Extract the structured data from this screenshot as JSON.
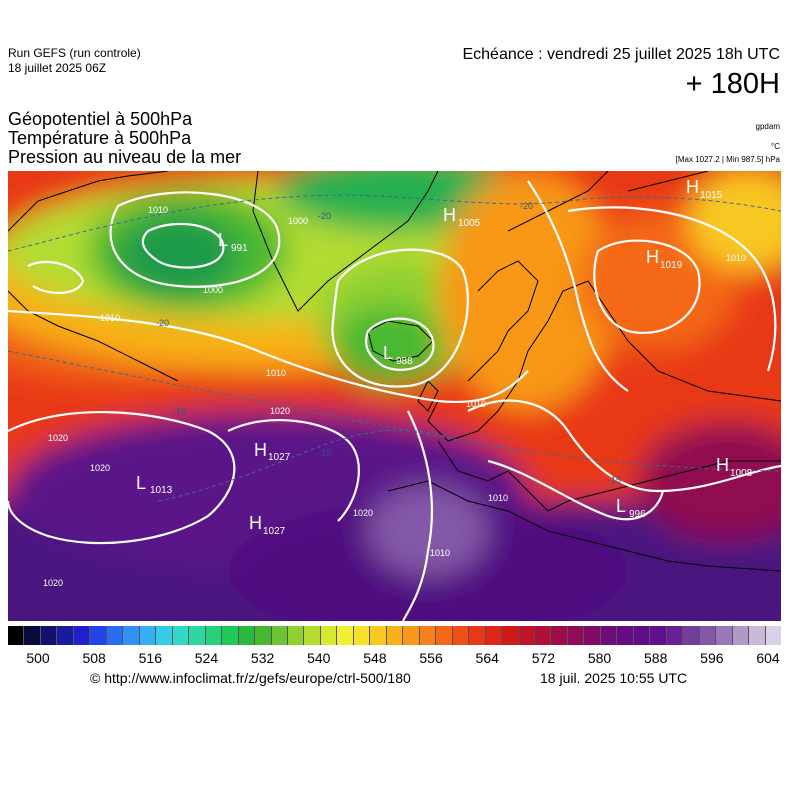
{
  "header": {
    "run_name": "Run GEFS (run controle)",
    "run_date": "18 juillet 2025 06Z",
    "valid_time": "Echéance : vendredi 25 juillet 2025 18h UTC",
    "lead_time": "+ 180H"
  },
  "titles": {
    "line1": "Géopotentiel à 500hPa",
    "line2": "Température à 500hPa",
    "line3": "Pression au niveau de la mer"
  },
  "units": {
    "geopotential": "gpdam",
    "temperature": "°C",
    "pressure_range": "[Max 1027.2 | Min 987.5] hPa"
  },
  "pressure_centers": [
    {
      "type": "L",
      "value": "991"
    },
    {
      "type": "H",
      "value": "1005"
    },
    {
      "type": "H",
      "value": "1015"
    },
    {
      "type": "H",
      "value": "1019"
    },
    {
      "type": "L",
      "value": "988"
    },
    {
      "type": "H",
      "value": "1027"
    },
    {
      "type": "L",
      "value": "1013"
    },
    {
      "type": "H",
      "value": "1027"
    },
    {
      "type": "H",
      "value": "1008"
    },
    {
      "type": "L",
      "value": "996"
    }
  ],
  "isobar_labels": [
    "1010",
    "1000",
    "1010",
    "1010",
    "1020",
    "1020",
    "1020",
    "1020",
    "1010",
    "1010",
    "1010",
    "1000",
    "1010",
    "1020"
  ],
  "temperature_labels": [
    "-20",
    "-20",
    "-20",
    "-15",
    "-10",
    "-15"
  ],
  "colorbar": {
    "tick_labels": [
      "500",
      "508",
      "516",
      "524",
      "532",
      "540",
      "548",
      "556",
      "564",
      "572",
      "580",
      "588",
      "596",
      "604"
    ],
    "colors": [
      "#000000",
      "#0a0a3a",
      "#12126e",
      "#1a1aa0",
      "#1f1fd0",
      "#2246e6",
      "#2a6cf0",
      "#3090f5",
      "#35b0f5",
      "#35cce8",
      "#30d8c8",
      "#2ad8a0",
      "#25d27a",
      "#20c85a",
      "#2ab840",
      "#48b830",
      "#6cc430",
      "#90d030",
      "#b4dc30",
      "#d8e830",
      "#f0f030",
      "#f8e028",
      "#f8c820",
      "#f8b018",
      "#f89818",
      "#f88018",
      "#f46818",
      "#f05018",
      "#e83818",
      "#e02418",
      "#d01818",
      "#c01428",
      "#b01038",
      "#a00c48",
      "#900c58",
      "#800c68",
      "#700c78",
      "#640c80",
      "#600c88",
      "#60108c",
      "#682094",
      "#743c9c",
      "#8458a8",
      "#9878b8",
      "#b098c8",
      "#c8b8d8",
      "#d8d0e6"
    ]
  },
  "footer": {
    "credit": "© http://www.infoclimat.fr/z/gefs/europe/ctrl-500/180",
    "generated": "18 juil. 2025 10:55 UTC"
  }
}
